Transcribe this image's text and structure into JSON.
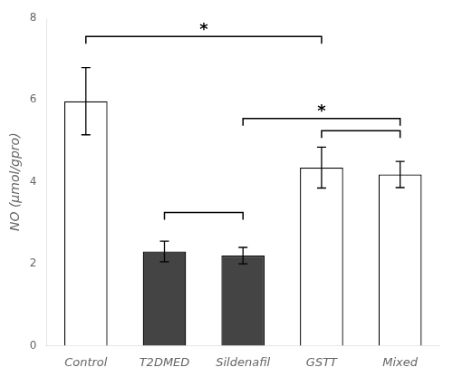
{
  "chart_data": {
    "type": "bar",
    "ylabel": "NO (μmol/gpro)",
    "categories": [
      "Control",
      "T2DMED",
      "Sildenafil",
      "GSTT",
      "Mixed"
    ],
    "values": [
      5.97,
      2.3,
      2.2,
      4.35,
      4.18
    ],
    "errors": [
      0.82,
      0.25,
      0.2,
      0.5,
      0.32
    ],
    "colors": [
      "white",
      "#444444",
      "#444444",
      "white",
      "white"
    ],
    "ylim": [
      0,
      8
    ],
    "yticks": [
      0,
      2,
      4,
      6,
      8
    ],
    "grid": false,
    "annotations": [
      {
        "text": "*",
        "from": "Control",
        "to": "GSTT",
        "y": 7.55
      },
      {
        "text": "*",
        "from": "Sildenafil",
        "to": "Mixed",
        "y": 5.55
      },
      {
        "from": "T2DMED",
        "to": "Sildenafil",
        "y": 3.25
      },
      {
        "from": "GSTT",
        "to": "Mixed",
        "y": 5.25
      }
    ]
  }
}
